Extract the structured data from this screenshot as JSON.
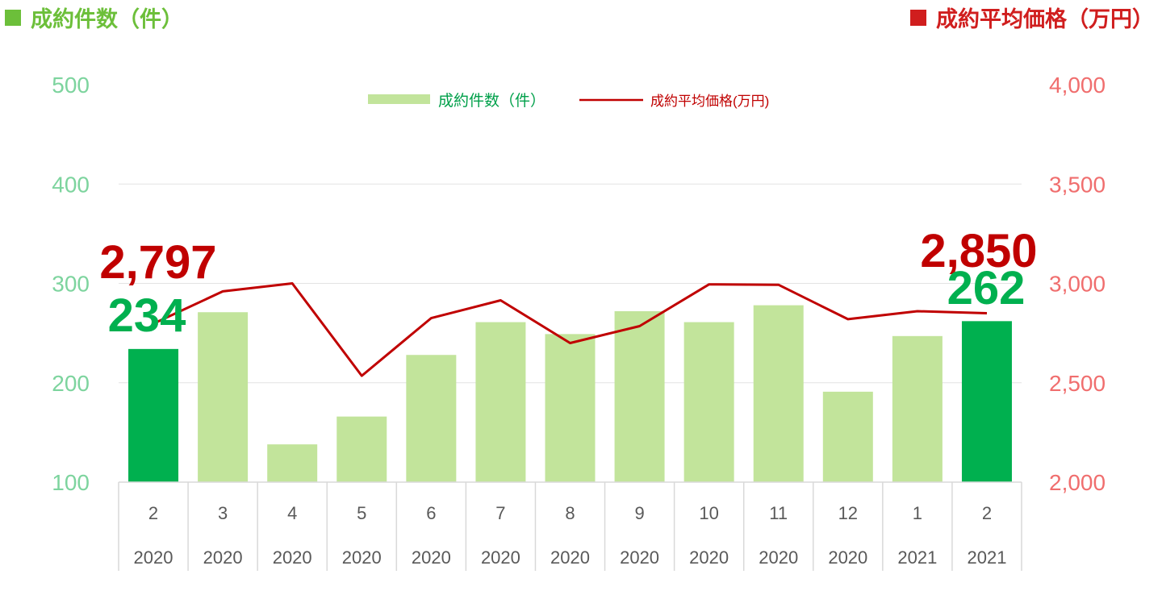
{
  "header": {
    "left_title": "成約件数（件）",
    "right_title": "成約平均価格（万円）"
  },
  "colors": {
    "bar_light": "#c2e49b",
    "bar_highlight": "#00b04f",
    "line": "#c00000",
    "left_axis": "#7dd49e",
    "right_axis": "#f06e6e",
    "header_left": "#6cbf3a",
    "header_right": "#d01e1e",
    "label_green": "#00b04f",
    "label_red": "#c00000",
    "legend_bar_text": "#00a04a",
    "legend_line_text": "#c00000"
  },
  "chart_data": {
    "type": "bar+line",
    "categories": [
      {
        "month": "2",
        "year": "2020"
      },
      {
        "month": "3",
        "year": "2020"
      },
      {
        "month": "4",
        "year": "2020"
      },
      {
        "month": "5",
        "year": "2020"
      },
      {
        "month": "6",
        "year": "2020"
      },
      {
        "month": "7",
        "year": "2020"
      },
      {
        "month": "8",
        "year": "2020"
      },
      {
        "month": "9",
        "year": "2020"
      },
      {
        "month": "10",
        "year": "2020"
      },
      {
        "month": "11",
        "year": "2020"
      },
      {
        "month": "12",
        "year": "2020"
      },
      {
        "month": "1",
        "year": "2021"
      },
      {
        "month": "2",
        "year": "2021"
      }
    ],
    "series": [
      {
        "name": "成約件数（件）",
        "type": "bar",
        "axis": "left",
        "values": [
          234,
          271,
          138,
          166,
          228,
          261,
          249,
          272,
          261,
          278,
          191,
          247,
          262
        ],
        "highlight": [
          true,
          false,
          false,
          false,
          false,
          false,
          false,
          false,
          false,
          false,
          false,
          false,
          true
        ]
      },
      {
        "name": "成約平均価格(万円)",
        "type": "line",
        "axis": "right",
        "values": [
          2797,
          2960,
          3000,
          2535,
          2825,
          2915,
          2700,
          2785,
          2995,
          2993,
          2820,
          2860,
          2850
        ]
      }
    ],
    "left_axis": {
      "min": 100,
      "max": 500,
      "ticks": [
        "100",
        "200",
        "300",
        "400",
        "500"
      ]
    },
    "right_axis": {
      "min": 2000,
      "max": 4000,
      "ticks": [
        "2,000",
        "2,500",
        "3,000",
        "3,500",
        "4,000"
      ]
    },
    "annotations": {
      "first_price": "2,797",
      "first_count": "234",
      "last_price": "2,850",
      "last_count": "262"
    },
    "legend_position": "top-center",
    "grid": true
  }
}
